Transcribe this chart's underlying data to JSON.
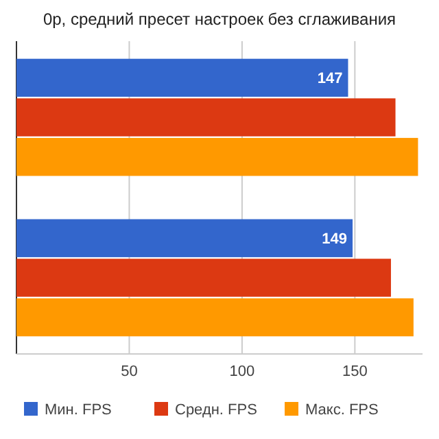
{
  "chart_data": {
    "type": "bar",
    "orientation": "horizontal",
    "title": "0р, средний пресет настроек без сглаживания",
    "categories": [
      null,
      null
    ],
    "series": [
      {
        "name": "Мин. FPS",
        "color": "#3366cc",
        "values": [
          147,
          149
        ],
        "value_labels": [
          "147",
          "149"
        ]
      },
      {
        "name": "Средн. FPS",
        "color": "#dc3912",
        "values": [
          168,
          166
        ]
      },
      {
        "name": "Макс. FPS",
        "color": "#ff9900",
        "values": [
          178,
          176
        ]
      }
    ],
    "xlim": [
      0,
      180
    ],
    "xticks": [
      50,
      100,
      150
    ],
    "grid": "x",
    "legend": "bottom"
  }
}
